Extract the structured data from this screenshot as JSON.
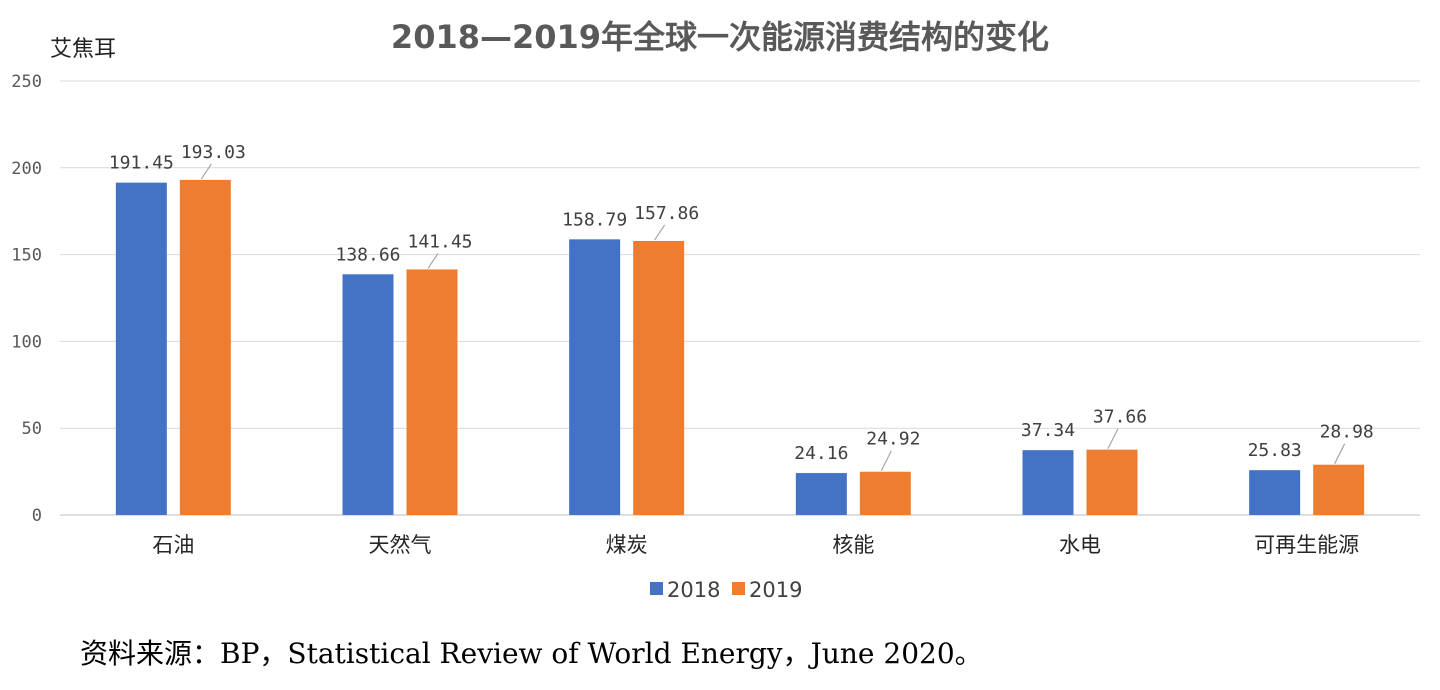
{
  "chart_data": {
    "type": "bar",
    "title": "2018—2019年全球一次能源消费结构的变化",
    "ylabel": "艾焦耳",
    "xlabel": "",
    "ylim": [
      0,
      250
    ],
    "yticks": [
      0,
      50,
      100,
      150,
      200,
      250
    ],
    "categories": [
      "石油",
      "天然气",
      "煤炭",
      "核能",
      "水电",
      "可再生能源"
    ],
    "series": [
      {
        "name": "2018",
        "color": "#4472C4",
        "values": [
          191.45,
          138.66,
          158.79,
          24.16,
          37.34,
          25.83
        ],
        "labels": [
          "191.45",
          "138.66",
          "158.79",
          "24.16",
          "37.34",
          "25.83"
        ]
      },
      {
        "name": "2019",
        "color": "#ED7D31",
        "values": [
          193.03,
          141.45,
          157.86,
          24.92,
          37.66,
          28.98
        ],
        "labels": [
          "193.03",
          "141.45",
          "157.86",
          "24.92",
          "37.66",
          "28.98"
        ]
      }
    ],
    "legend": "bottom-center",
    "grid": true
  },
  "source_note": "资料来源：BP，Statistical Review of World Energy，June 2020。"
}
